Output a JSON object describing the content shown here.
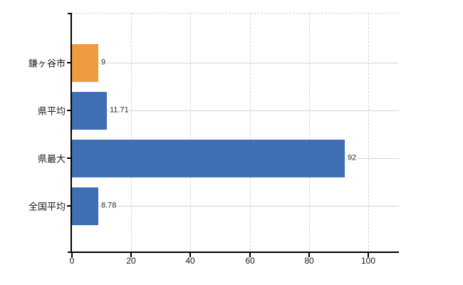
{
  "chart_data": {
    "type": "bar",
    "orientation": "horizontal",
    "title": "",
    "xlabel": "",
    "ylabel": "",
    "categories": [
      "鎌ヶ谷市",
      "県平均",
      "県最大",
      "全国平均"
    ],
    "values": [
      9,
      11.71,
      92,
      8.78
    ],
    "value_labels": [
      "9",
      "11.71",
      "92",
      "8.78"
    ],
    "bar_colors": [
      "#EE9A3F",
      "#3F6EB4",
      "#3F6EB4",
      "#3F6EB4"
    ],
    "x_ticks": [
      0,
      20,
      40,
      60,
      80,
      100
    ],
    "x_tick_labels": [
      "0",
      "20",
      "40",
      "60",
      "80",
      "100"
    ],
    "xlim": [
      0,
      110
    ],
    "grid": true,
    "legend": false
  },
  "colors": {
    "bar_orange": "#EE9A3F",
    "bar_blue": "#3F6EB4",
    "gridline": "#D4D4D4",
    "axis": "#000000",
    "background": "#FFFFFF",
    "text": "#1A1A1A"
  }
}
